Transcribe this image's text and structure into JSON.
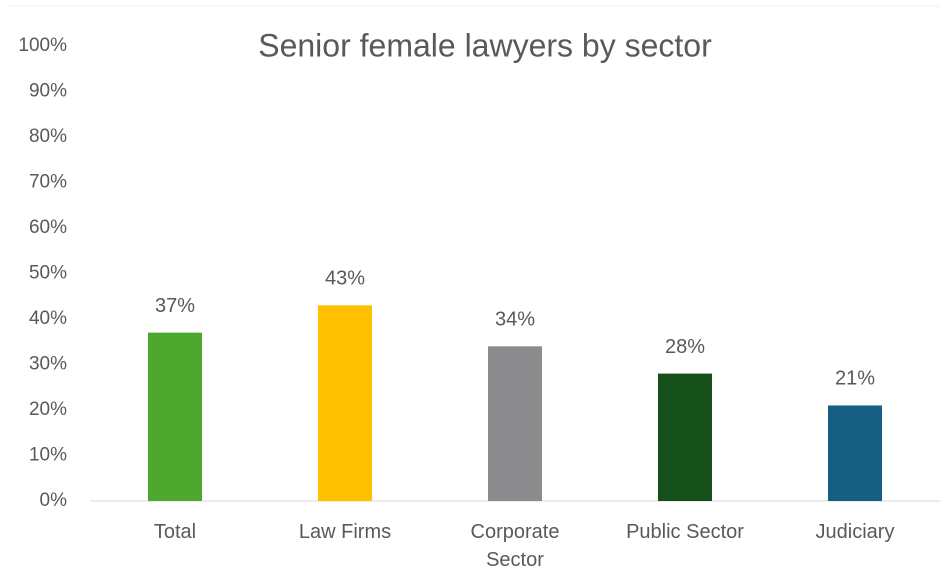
{
  "chart_data": {
    "type": "bar",
    "title": "Senior female lawyers by sector",
    "categories": [
      "Total",
      "Law Firms",
      "Corporate Sector",
      "Public Sector",
      "Judiciary"
    ],
    "values": [
      37,
      43,
      34,
      28,
      21
    ],
    "value_labels": [
      "37%",
      "43%",
      "34%",
      "28%",
      "21%"
    ],
    "colors": [
      "#4ea72e",
      "#ffc000",
      "#8c8c8f",
      "#154f1a",
      "#155f82"
    ],
    "ylim": [
      0,
      100
    ],
    "yticks": [
      {
        "value": 0,
        "label": "0%"
      },
      {
        "value": 10,
        "label": "10%"
      },
      {
        "value": 20,
        "label": "20%"
      },
      {
        "value": 30,
        "label": "30%"
      },
      {
        "value": 40,
        "label": "40%"
      },
      {
        "value": 50,
        "label": "50%"
      },
      {
        "value": 60,
        "label": "60%"
      },
      {
        "value": 70,
        "label": "70%"
      },
      {
        "value": 80,
        "label": "80%"
      },
      {
        "value": 90,
        "label": "90%"
      },
      {
        "value": 100,
        "label": "100%"
      }
    ],
    "grid": false
  }
}
